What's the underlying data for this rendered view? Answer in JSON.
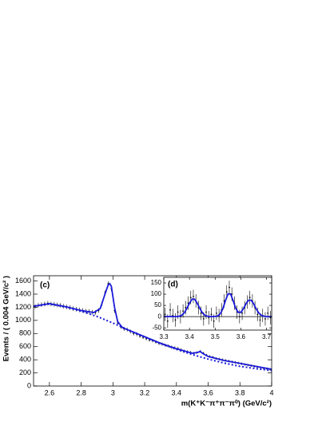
{
  "chart_data": [
    {
      "type": "scatter",
      "panel_label": "(c)",
      "x_label": "m(K⁺K⁻π⁺π⁻π⁰) (GeV/c²)",
      "y_label": "Events / ( 0.004 GeV/c² )",
      "xlim": [
        2.5,
        4.0
      ],
      "ylim": [
        0,
        1680
      ],
      "xticks": [
        2.6,
        2.8,
        3,
        3.2,
        3.4,
        3.6,
        3.8,
        4
      ],
      "yticks": [
        0,
        200,
        400,
        600,
        800,
        1000,
        1200,
        1400,
        1600
      ],
      "series": [
        {
          "style": "points",
          "color": "#000000",
          "x": [
            2.51,
            2.53,
            2.55,
            2.57,
            2.59,
            2.61,
            2.63,
            2.65,
            2.67,
            2.69,
            2.71,
            2.73,
            2.75,
            2.77,
            2.79,
            2.81,
            2.83,
            2.85,
            2.87,
            2.89,
            2.91,
            2.93,
            2.95,
            2.97,
            2.99,
            3.01,
            3.03,
            3.05,
            3.07,
            3.09,
            3.11,
            3.13,
            3.15,
            3.17,
            3.19,
            3.21,
            3.23,
            3.25,
            3.27,
            3.29,
            3.31,
            3.33,
            3.35,
            3.37,
            3.39,
            3.41,
            3.43,
            3.45,
            3.47,
            3.49,
            3.51,
            3.53,
            3.55,
            3.57,
            3.59,
            3.61,
            3.63,
            3.65,
            3.67,
            3.69,
            3.71,
            3.73,
            3.75,
            3.77,
            3.79,
            3.81,
            3.83,
            3.85,
            3.87,
            3.89,
            3.91,
            3.93,
            3.95,
            3.97,
            3.99
          ],
          "values": [
            1210,
            1230,
            1240,
            1250,
            1260,
            1250,
            1245,
            1235,
            1230,
            1215,
            1205,
            1195,
            1180,
            1170,
            1160,
            1150,
            1140,
            1135,
            1125,
            1120,
            1150,
            1250,
            1420,
            1560,
            1480,
            1150,
            960,
            900,
            870,
            860,
            830,
            800,
            790,
            760,
            740,
            720,
            700,
            690,
            670,
            650,
            640,
            620,
            610,
            590,
            580,
            570,
            550,
            530,
            520,
            510,
            500,
            510,
            530,
            500,
            470,
            450,
            440,
            420,
            410,
            400,
            390,
            380,
            370,
            360,
            350,
            340,
            330,
            320,
            310,
            300,
            290,
            280,
            270,
            265,
            255
          ],
          "errors": [
            35,
            35,
            35,
            35,
            35,
            35,
            35,
            35,
            35,
            35,
            35,
            35,
            35,
            35,
            35,
            35,
            35,
            35,
            35,
            35,
            35,
            35,
            35,
            35,
            35,
            35,
            30,
            30,
            30,
            30,
            30,
            30,
            30,
            25,
            25,
            25,
            25,
            25,
            25,
            25,
            25,
            25,
            25,
            25,
            25,
            25,
            25,
            25,
            25,
            25,
            20,
            20,
            20,
            20,
            20,
            20,
            20,
            20,
            20,
            20,
            20,
            20,
            20,
            20,
            20,
            20,
            20,
            20,
            20,
            20,
            20,
            20,
            20,
            20,
            20
          ]
        },
        {
          "style": "line",
          "color": "#1a1adc",
          "x": [
            2.5,
            2.6,
            2.7,
            2.8,
            2.88,
            2.92,
            2.95,
            2.97,
            2.98,
            2.99,
            3.01,
            3.03,
            3.06,
            3.1,
            3.2,
            3.3,
            3.4,
            3.5,
            3.53,
            3.55,
            3.57,
            3.6,
            3.7,
            3.8,
            3.9,
            4.0
          ],
          "values": [
            1215,
            1255,
            1210,
            1150,
            1120,
            1180,
            1400,
            1540,
            1560,
            1520,
            1200,
            980,
            890,
            850,
            750,
            650,
            570,
            500,
            510,
            525,
            490,
            450,
            390,
            345,
            300,
            255
          ]
        },
        {
          "style": "dotted",
          "color": "#1a1adc",
          "x": [
            2.5,
            2.6,
            2.7,
            2.8,
            2.9,
            3.0,
            3.1,
            3.2,
            3.3,
            3.4,
            3.5,
            3.6,
            3.7,
            3.8,
            3.9,
            4.0
          ],
          "values": [
            1215,
            1250,
            1205,
            1140,
            1060,
            960,
            850,
            750,
            650,
            560,
            480,
            410,
            350,
            300,
            265,
            235
          ]
        }
      ]
    },
    {
      "type": "scatter",
      "panel_label": "(d)",
      "zero_line": true,
      "xlim": [
        3.3,
        3.72
      ],
      "ylim": [
        -60,
        175
      ],
      "xticks": [
        3.3,
        3.4,
        3.5,
        3.6,
        3.7
      ],
      "yticks": [
        -50,
        0,
        50,
        100,
        150
      ],
      "series": [
        {
          "style": "points",
          "color": "#000000",
          "x": [
            3.305,
            3.315,
            3.325,
            3.335,
            3.345,
            3.355,
            3.365,
            3.375,
            3.385,
            3.395,
            3.405,
            3.415,
            3.425,
            3.435,
            3.445,
            3.455,
            3.465,
            3.475,
            3.485,
            3.495,
            3.505,
            3.515,
            3.525,
            3.535,
            3.545,
            3.555,
            3.565,
            3.575,
            3.585,
            3.595,
            3.605,
            3.615,
            3.625,
            3.635,
            3.645,
            3.655,
            3.665,
            3.675,
            3.685,
            3.695,
            3.705,
            3.715
          ],
          "values": [
            10,
            -20,
            30,
            5,
            -15,
            20,
            0,
            25,
            40,
            60,
            85,
            90,
            70,
            40,
            15,
            -10,
            20,
            -5,
            10,
            -20,
            15,
            5,
            30,
            70,
            110,
            130,
            100,
            60,
            20,
            0,
            15,
            40,
            65,
            85,
            70,
            40,
            10,
            -15,
            5,
            -10,
            15,
            -5
          ],
          "errors": [
            30,
            30,
            30,
            30,
            30,
            30,
            30,
            30,
            30,
            30,
            30,
            30,
            30,
            30,
            30,
            30,
            30,
            30,
            30,
            30,
            30,
            30,
            30,
            30,
            30,
            30,
            30,
            30,
            30,
            30,
            30,
            30,
            30,
            30,
            30,
            30,
            30,
            30,
            30,
            30,
            30,
            30
          ]
        },
        {
          "style": "line",
          "color": "#1a1adc",
          "x": [
            3.3,
            3.31,
            3.32,
            3.33,
            3.34,
            3.35,
            3.36,
            3.37,
            3.38,
            3.39,
            3.4,
            3.41,
            3.42,
            3.43,
            3.44,
            3.45,
            3.46,
            3.47,
            3.48,
            3.49,
            3.5,
            3.51,
            3.52,
            3.53,
            3.54,
            3.55,
            3.56,
            3.57,
            3.58,
            3.59,
            3.6,
            3.61,
            3.62,
            3.63,
            3.64,
            3.65,
            3.66,
            3.67,
            3.68,
            3.69,
            3.7,
            3.71,
            3.72
          ],
          "values": [
            0,
            0,
            0,
            0,
            0,
            0,
            2,
            6,
            17,
            37,
            60,
            78,
            78,
            60,
            37,
            17,
            6,
            2,
            0,
            0,
            1,
            3,
            13,
            35,
            71,
            101,
            101,
            71,
            37,
            19,
            19,
            35,
            57,
            73,
            73,
            57,
            34,
            16,
            6,
            2,
            0,
            0,
            0
          ]
        }
      ]
    }
  ]
}
